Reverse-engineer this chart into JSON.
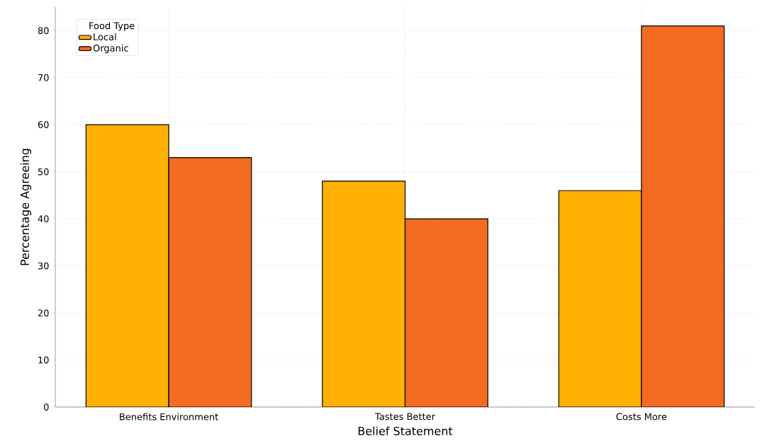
{
  "chart_data": {
    "type": "bar",
    "xlabel": "Belief Statement",
    "ylabel": "Percentage Agreeing",
    "legend_title": "Food Type",
    "categories": [
      "Benefits Environment",
      "Tastes Better",
      "Costs More"
    ],
    "series": [
      {
        "name": "Local",
        "color": "#ffb000",
        "values": [
          60,
          48,
          46
        ]
      },
      {
        "name": "Organic",
        "color": "#f26b21",
        "values": [
          53,
          40,
          81
        ]
      }
    ],
    "ylim": [
      0,
      85
    ],
    "yticks": [
      0,
      10,
      20,
      30,
      40,
      50,
      60,
      70,
      80
    ],
    "grid": true,
    "legend": "top left"
  }
}
